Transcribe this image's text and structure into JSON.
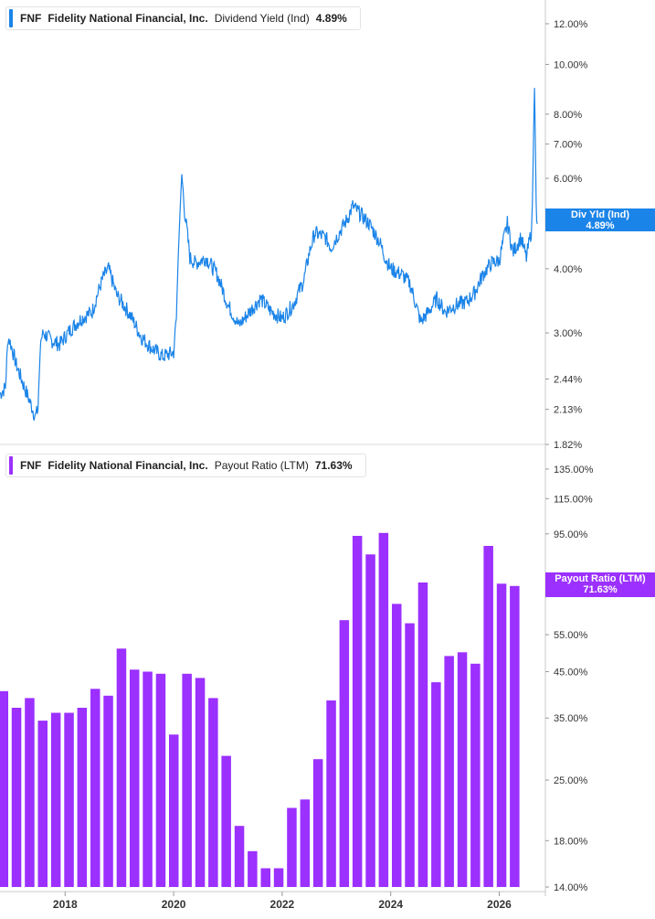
{
  "colors": {
    "yield": "#1b84e8",
    "payout": "#9b30ff",
    "axis": "#c8c8c8",
    "text": "#333333"
  },
  "top_legend": {
    "ticker": "FNF",
    "company": "Fidelity National Financial, Inc.",
    "metric": "Dividend Yield (Ind)",
    "value": "4.89%"
  },
  "top_tag": {
    "label": "Div Yld (Ind)",
    "value": "4.89%"
  },
  "bottom_legend": {
    "ticker": "FNF",
    "company": "Fidelity National Financial, Inc.",
    "metric": "Payout Ratio (LTM)",
    "value": "71.63%"
  },
  "bottom_tag": {
    "label": "Payout Ratio (LTM)",
    "value": "71.63%"
  },
  "chart_data": [
    {
      "type": "line",
      "series": [
        {
          "name": "Dividend Yield (Ind)"
        }
      ],
      "y_scale": "log",
      "ylim": [
        1.82,
        12.5
      ],
      "y_ticks": [
        "12.00%",
        "10.00%",
        "8.00%",
        "7.00%",
        "6.00%",
        "4.00%",
        "3.00%",
        "2.44%",
        "2.13%",
        "1.82%"
      ],
      "x_ticks": [
        "2018",
        "2020",
        "2022",
        "2024",
        "2026"
      ],
      "xlim": [
        2016.8,
        2026.85
      ],
      "x": [
        2016.8,
        2016.9,
        2016.95,
        2017.0,
        2017.1,
        2017.25,
        2017.45,
        2017.5,
        2017.55,
        2017.6,
        2017.75,
        2017.9,
        2018.1,
        2018.3,
        2018.5,
        2018.7,
        2018.8,
        2018.9,
        2018.95,
        2019.0,
        2019.2,
        2019.4,
        2019.6,
        2019.8,
        2020.0,
        2020.05,
        2020.15,
        2020.2,
        2020.3,
        2020.4,
        2020.6,
        2020.8,
        2021.0,
        2021.2,
        2021.4,
        2021.6,
        2021.8,
        2022.0,
        2022.2,
        2022.4,
        2022.5,
        2022.6,
        2022.8,
        2022.9,
        2023.0,
        2023.2,
        2023.3,
        2023.45,
        2023.6,
        2023.8,
        2023.9,
        2024.0,
        2024.2,
        2024.35,
        2024.55,
        2024.7,
        2024.85,
        2025.0,
        2025.2,
        2025.4,
        2025.55,
        2025.7,
        2025.85,
        2026.0,
        2026.15,
        2026.25,
        2026.4,
        2026.5,
        2026.6,
        2026.62,
        2026.65,
        2026.68,
        2026.7
      ],
      "values": [
        2.28,
        2.35,
        2.95,
        2.85,
        2.6,
        2.35,
        2.06,
        2.13,
        2.9,
        3.0,
        2.9,
        2.85,
        3.05,
        3.2,
        3.3,
        3.85,
        4.0,
        3.7,
        3.55,
        3.5,
        3.25,
        2.95,
        2.8,
        2.7,
        2.75,
        3.2,
        6.1,
        5.2,
        4.2,
        4.1,
        4.2,
        3.9,
        3.4,
        3.1,
        3.3,
        3.5,
        3.3,
        3.2,
        3.4,
        3.8,
        4.3,
        4.7,
        4.6,
        4.4,
        4.6,
        5.0,
        5.3,
        5.1,
        4.9,
        4.5,
        4.2,
        4.0,
        3.9,
        3.75,
        3.15,
        3.3,
        3.5,
        3.3,
        3.4,
        3.45,
        3.6,
        3.9,
        4.1,
        4.15,
        4.9,
        4.3,
        4.6,
        4.2,
        4.8,
        6.0,
        9.0,
        5.3,
        4.89
      ]
    },
    {
      "type": "bar",
      "series": [
        {
          "name": "Payout Ratio (LTM)"
        }
      ],
      "y_scale": "log",
      "ylim": [
        14.0,
        137.0
      ],
      "y_ticks": [
        "135.00%",
        "115.00%",
        "95.00%",
        "55.00%",
        "45.00%",
        "35.00%",
        "25.00%",
        "18.00%",
        "14.00%"
      ],
      "x_ticks": [
        "2018",
        "2020",
        "2022",
        "2024",
        "2026"
      ],
      "values": [
        40.5,
        37.0,
        39.0,
        34.5,
        36.0,
        36.0,
        37.0,
        41.0,
        39.5,
        51.0,
        45.5,
        45.0,
        44.5,
        32.0,
        44.5,
        43.5,
        39.0,
        28.5,
        19.5,
        17.0,
        15.5,
        15.5,
        21.5,
        22.5,
        28.0,
        38.5,
        59.5,
        94.0,
        85.0,
        95.5,
        65.0,
        58.5,
        73.0,
        42.5,
        49.0,
        50.0,
        47.0,
        89.0,
        72.5,
        71.63
      ]
    }
  ]
}
